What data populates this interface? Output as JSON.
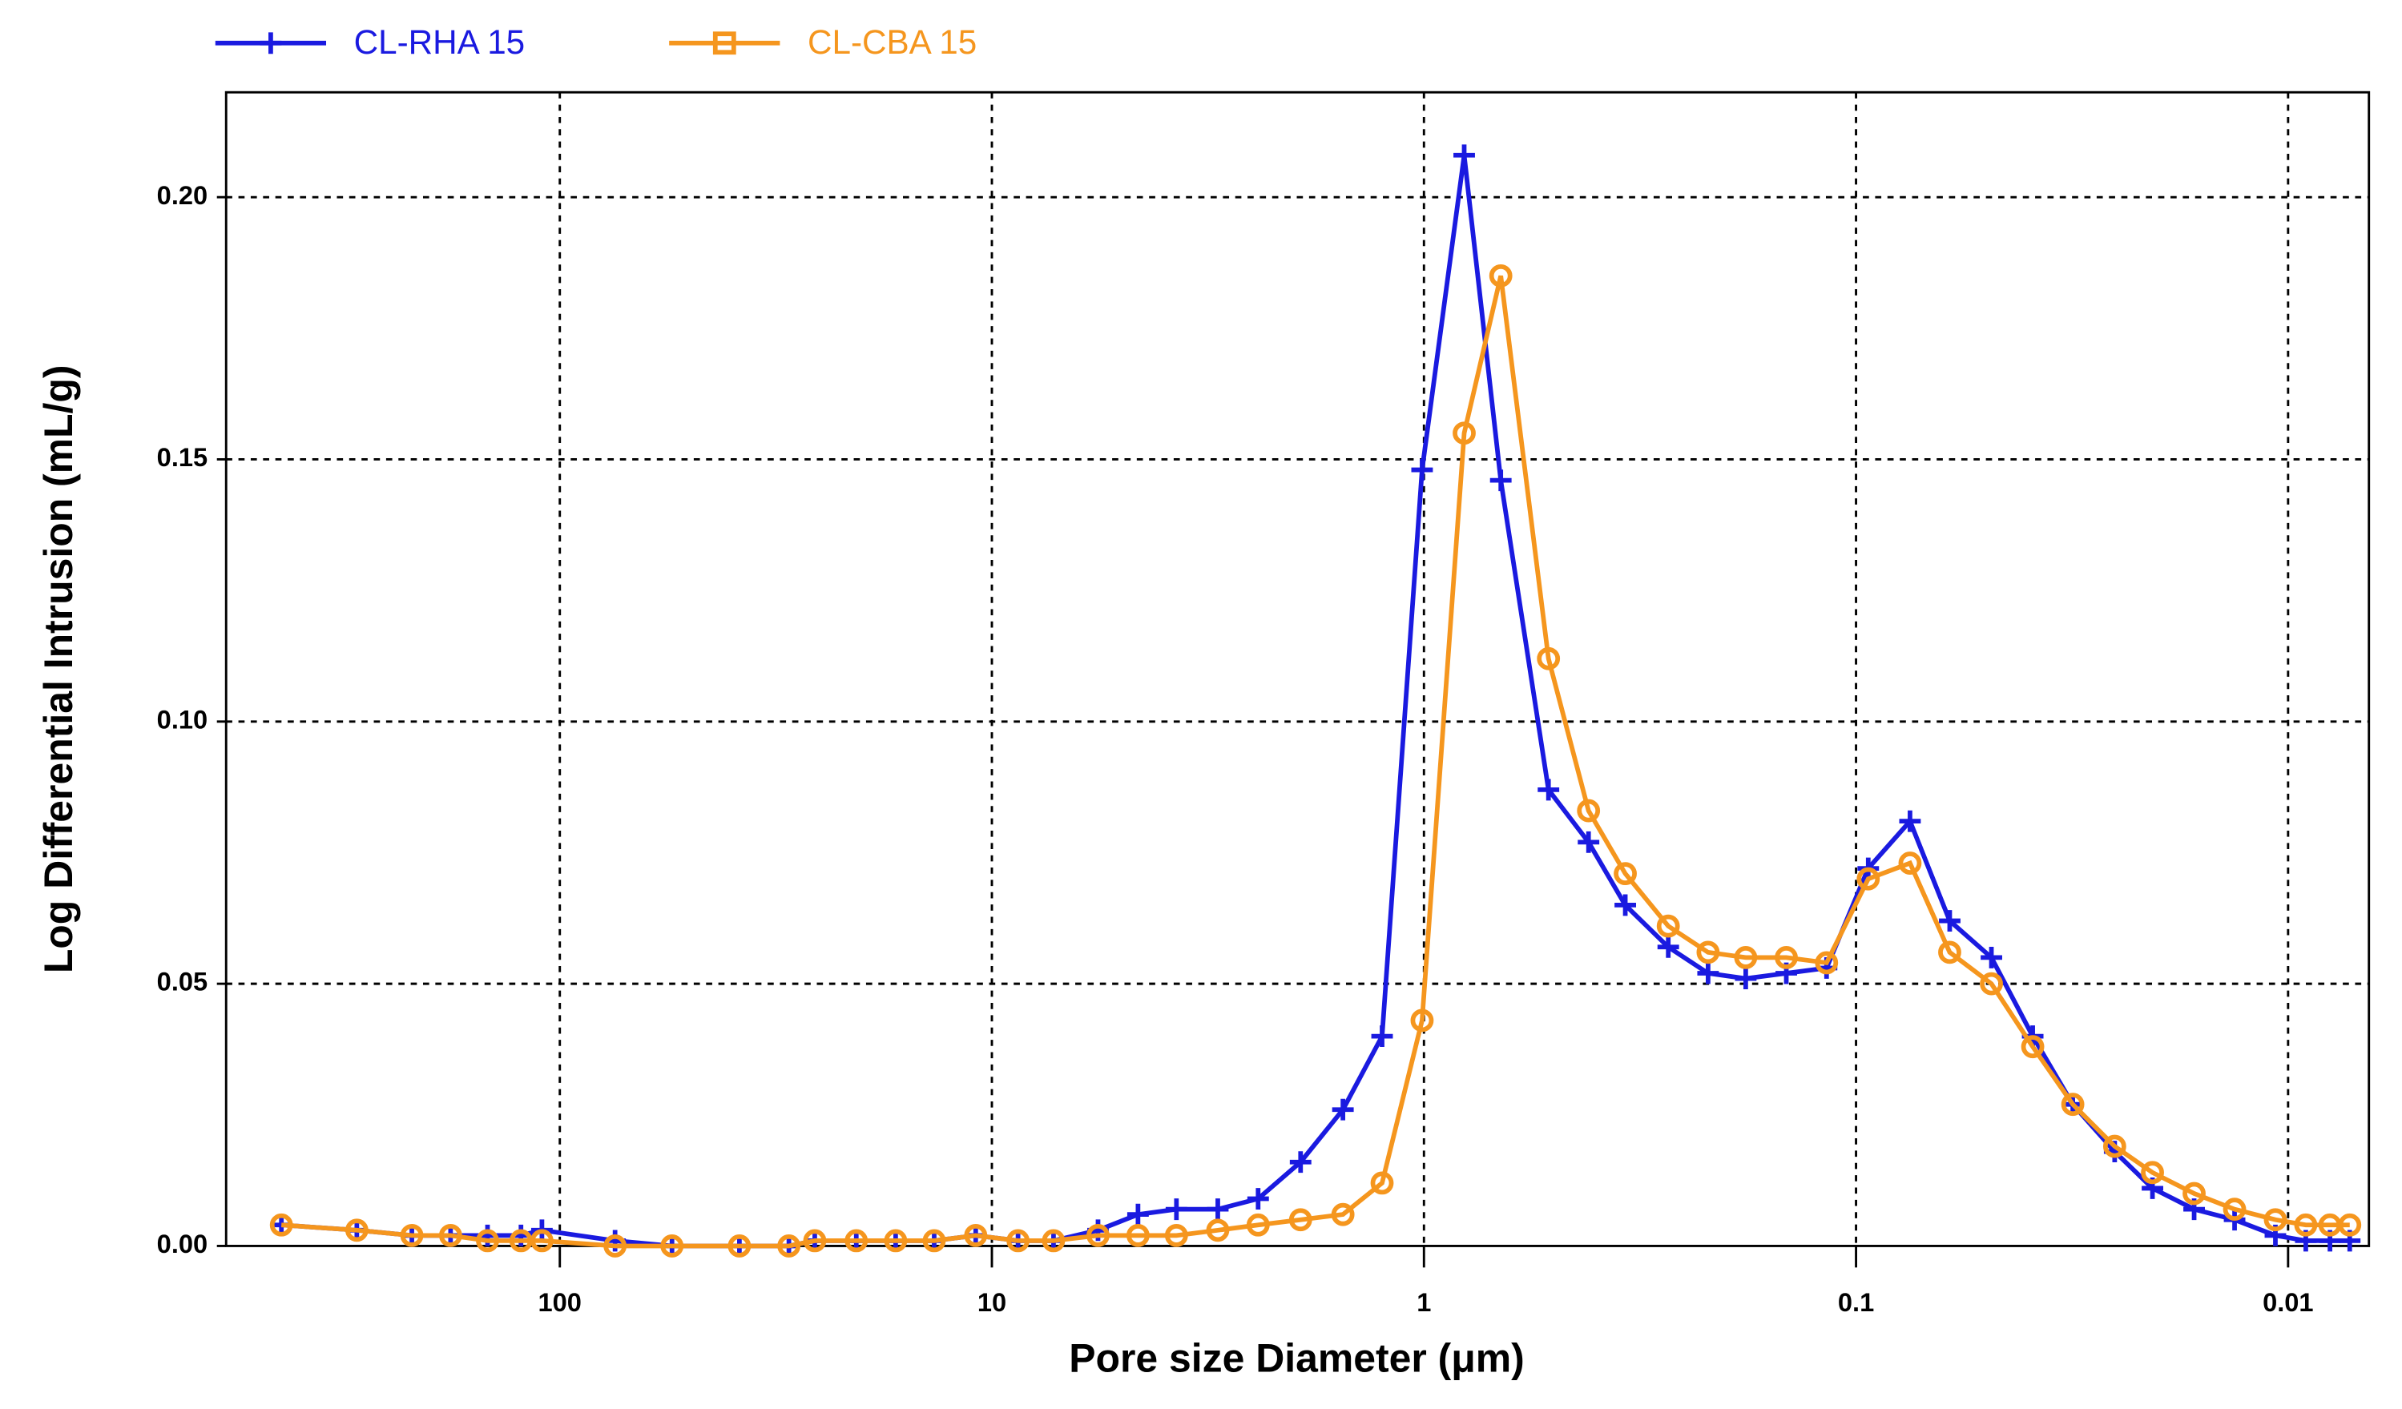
{
  "chart_data": {
    "type": "line",
    "x_label": "Pore size Diameter (μm)",
    "y_label": "Log Differential Intrusion (mL/g)",
    "xscale": "log",
    "x_reversed": true,
    "grid": true,
    "legend": "top-left",
    "xlim": [
      592,
      0.0065
    ],
    "ylim": [
      0,
      0.22
    ],
    "xticks": [
      100,
      10,
      1,
      0.1,
      0.01
    ],
    "yticks": [
      {
        "value": 0,
        "label": "0.00"
      },
      0.05,
      {
        "value": 0.1,
        "label": "0.10"
      },
      0.15,
      {
        "value": 0.2,
        "label": "0.20"
      }
    ],
    "x": [
      441,
      295,
      220,
      179,
      147,
      123,
      110,
      74.5,
      55,
      38.4,
      29.5,
      25.7,
      20.6,
      16.7,
      13.6,
      10.9,
      8.7,
      7.2,
      5.68,
      4.59,
      3.74,
      3.0,
      2.42,
      1.93,
      1.54,
      1.25,
      1.01,
      0.807,
      0.664,
      0.515,
      0.416,
      0.342,
      0.272,
      0.22,
      0.18,
      0.145,
      0.117,
      0.0937,
      0.075,
      0.0607,
      0.0486,
      0.039,
      0.0315,
      0.0252,
      0.0206,
      0.0165,
      0.0133,
      0.0107,
      0.0091,
      0.008,
      0.0072
    ],
    "series": [
      {
        "name": "CL-RHA 15",
        "color": "#1a1ae0",
        "marker": "plus",
        "values": [
          0.004,
          0.003,
          0.002,
          0.002,
          0.002,
          0.002,
          0.003,
          0.001,
          0.0,
          0.0,
          0.0,
          0.001,
          0.001,
          0.001,
          0.001,
          0.002,
          0.001,
          0.001,
          0.003,
          0.006,
          0.007,
          0.007,
          0.009,
          0.016,
          0.026,
          0.04,
          0.148,
          0.208,
          0.146,
          0.087,
          0.077,
          0.065,
          0.057,
          0.052,
          0.051,
          0.052,
          0.053,
          0.072,
          0.081,
          0.062,
          0.055,
          0.04,
          0.027,
          0.018,
          0.011,
          0.007,
          0.005,
          0.002,
          0.001,
          0.001,
          0.001
        ]
      },
      {
        "name": "CL-CBA 15",
        "color": "#f5961e",
        "marker": "circle",
        "values": [
          0.004,
          0.003,
          0.002,
          0.002,
          0.001,
          0.001,
          0.001,
          0.0,
          0.0,
          0.0,
          0.0,
          0.001,
          0.001,
          0.001,
          0.001,
          0.002,
          0.001,
          0.001,
          0.002,
          0.002,
          0.002,
          0.003,
          0.004,
          0.005,
          0.006,
          0.012,
          0.043,
          0.155,
          0.185,
          0.112,
          0.083,
          0.071,
          0.061,
          0.056,
          0.055,
          0.055,
          0.054,
          0.07,
          0.073,
          0.056,
          0.05,
          0.038,
          0.027,
          0.019,
          0.014,
          0.01,
          0.007,
          0.005,
          0.004,
          0.004,
          0.004
        ]
      }
    ]
  }
}
